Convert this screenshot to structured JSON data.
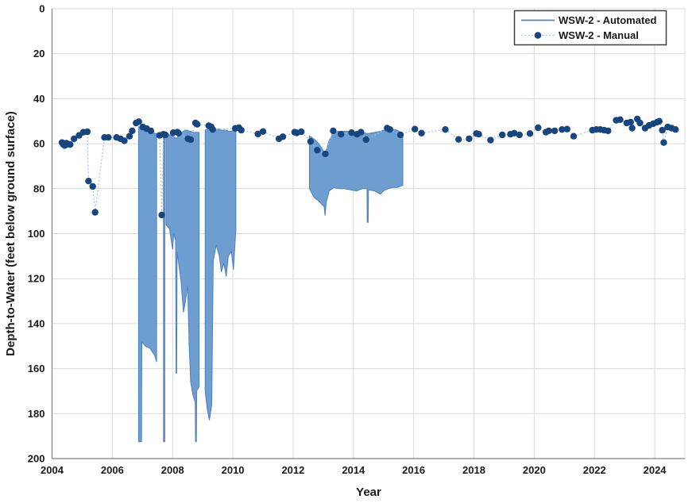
{
  "chart_data": {
    "type": "line",
    "title": "",
    "xlabel": "Year",
    "ylabel": "Depth-to-Water (feet below ground surface)",
    "x_range": [
      2004,
      2025
    ],
    "y_range": [
      0,
      200
    ],
    "y_inverted": true,
    "grid": true,
    "x_ticks": [
      2004,
      2006,
      2008,
      2010,
      2012,
      2014,
      2016,
      2018,
      2020,
      2022,
      2024
    ],
    "y_ticks": [
      0,
      20,
      40,
      60,
      80,
      100,
      120,
      140,
      160,
      180,
      200
    ],
    "legend_position": "top-right",
    "colors": {
      "area_fill": "#6E9ECF",
      "area_stroke": "#4E81BD",
      "marker": "#17457F",
      "dotted_line": "#A6C1DC",
      "gridline": "#D9D9D9",
      "axis_line": "#7F7F7F",
      "text": "#1A1A1A",
      "legend_border": "#404040"
    },
    "legend": [
      {
        "label": "WSW-2 - Automated",
        "swatch": "solid-line"
      },
      {
        "label": "WSW-2 -  Manual",
        "swatch": "dotted-line-marker"
      }
    ],
    "series": [
      {
        "name": "WSW-2 - Automated",
        "style": "area-envelope",
        "units": "feet below ground surface",
        "segments": [
          {
            "points": [
              [
                2006.87,
                52.5,
                192.5
              ],
              [
                2006.97,
                53,
                192.5
              ],
              [
                2006.98,
                53.5,
                148
              ],
              [
                2007.1,
                54,
                150
              ],
              [
                2007.25,
                55,
                151
              ],
              [
                2007.4,
                55.5,
                154
              ],
              [
                2007.47,
                55.5,
                157
              ]
            ]
          },
          {
            "points": [
              [
                2007.7,
                56,
                192.5
              ],
              [
                2007.74,
                56,
                192.5
              ]
            ]
          },
          {
            "points": [
              [
                2007.78,
                56.5,
                96
              ],
              [
                2007.9,
                56,
                98
              ],
              [
                2008.0,
                56.5,
                107
              ],
              [
                2008.04,
                57,
                100
              ],
              [
                2008.1,
                57.5,
                103
              ],
              [
                2008.115,
                57.5,
                162
              ],
              [
                2008.135,
                57.5,
                162
              ],
              [
                2008.15,
                57.5,
                108
              ],
              [
                2008.2,
                56.5,
                113
              ],
              [
                2008.28,
                55.5,
                121
              ],
              [
                2008.36,
                54.5,
                135
              ],
              [
                2008.42,
                54,
                131
              ],
              [
                2008.5,
                54,
                123
              ],
              [
                2008.55,
                54.5,
                150
              ],
              [
                2008.6,
                54.5,
                166
              ],
              [
                2008.68,
                55,
                172
              ],
              [
                2008.75,
                55,
                175
              ],
              [
                2008.76,
                55,
                192.5
              ],
              [
                2008.79,
                55,
                192.5
              ],
              [
                2008.8,
                55,
                170
              ],
              [
                2008.88,
                55,
                168
              ]
            ]
          },
          {
            "points": [
              [
                2009.08,
                54,
                170
              ],
              [
                2009.15,
                53.5,
                178
              ],
              [
                2009.22,
                53.5,
                183
              ],
              [
                2009.3,
                53.5,
                176
              ],
              [
                2009.35,
                53.5,
                112
              ],
              [
                2009.45,
                53.5,
                105
              ],
              [
                2009.55,
                53.5,
                110
              ],
              [
                2009.62,
                54,
                117
              ],
              [
                2009.7,
                54,
                113
              ],
              [
                2009.78,
                54,
                119
              ],
              [
                2009.85,
                54.5,
                110
              ],
              [
                2009.95,
                54.5,
                108
              ],
              [
                2010.02,
                54,
                116
              ],
              [
                2010.1,
                53.5,
                98
              ]
            ]
          },
          {
            "points": [
              [
                2012.54,
                56.5,
                80
              ],
              [
                2012.7,
                58,
                84
              ],
              [
                2012.85,
                60,
                85.5
              ],
              [
                2012.95,
                62,
                87
              ],
              [
                2013.03,
                64,
                88
              ],
              [
                2013.06,
                64.5,
                92
              ],
              [
                2013.1,
                63,
                86
              ],
              [
                2013.2,
                58.5,
                81
              ],
              [
                2013.35,
                55,
                79.5
              ],
              [
                2013.5,
                54.5,
                80
              ],
              [
                2013.7,
                54.5,
                80
              ],
              [
                2013.9,
                54.5,
                80.5
              ],
              [
                2014.1,
                55,
                81
              ],
              [
                2014.3,
                55,
                80
              ],
              [
                2014.45,
                55.5,
                80
              ],
              [
                2014.46,
                55.5,
                95
              ],
              [
                2014.49,
                55.5,
                95
              ],
              [
                2014.5,
                55.5,
                80.5
              ],
              [
                2014.7,
                55,
                81
              ],
              [
                2014.9,
                54.5,
                82.5
              ],
              [
                2015.0,
                54,
                81
              ],
              [
                2015.15,
                53.5,
                80
              ],
              [
                2015.3,
                53.5,
                79.5
              ],
              [
                2015.45,
                54,
                79.5
              ],
              [
                2015.64,
                55.5,
                78.5
              ]
            ]
          }
        ]
      },
      {
        "name": "WSW-2 -  Manual",
        "style": "scatter-with-dotted-connector",
        "units": "feet below ground surface",
        "points": [
          [
            2004.33,
            59.5
          ],
          [
            2004.37,
            60.3
          ],
          [
            2004.42,
            60.8
          ],
          [
            2004.47,
            59.8
          ],
          [
            2004.53,
            60.2
          ],
          [
            2004.6,
            60.4
          ],
          [
            2004.73,
            57.8
          ],
          [
            2004.9,
            56.3
          ],
          [
            2005.04,
            54.9
          ],
          [
            2005.17,
            54.7
          ],
          [
            2005.21,
            76.6
          ],
          [
            2005.35,
            79.0
          ],
          [
            2005.43,
            90.5
          ],
          [
            2005.74,
            57.2
          ],
          [
            2005.87,
            57.2
          ],
          [
            2006.14,
            57.2
          ],
          [
            2006.27,
            57.8
          ],
          [
            2006.4,
            58.7
          ],
          [
            2006.57,
            56.7
          ],
          [
            2006.66,
            54.3
          ],
          [
            2006.79,
            50.8
          ],
          [
            2006.88,
            50.2
          ],
          [
            2007.01,
            52.6
          ],
          [
            2007.14,
            53.3
          ],
          [
            2007.28,
            54.3
          ],
          [
            2007.57,
            56.3
          ],
          [
            2007.64,
            91.7
          ],
          [
            2007.7,
            55.8
          ],
          [
            2007.76,
            56.1
          ],
          [
            2008.02,
            55.1
          ],
          [
            2008.16,
            54.9
          ],
          [
            2008.2,
            55.3
          ],
          [
            2008.51,
            57.8
          ],
          [
            2008.6,
            58.2
          ],
          [
            2008.76,
            50.8
          ],
          [
            2008.82,
            51.4
          ],
          [
            2009.2,
            52.0
          ],
          [
            2009.28,
            52.5
          ],
          [
            2009.33,
            53.7
          ],
          [
            2010.08,
            53.2
          ],
          [
            2010.2,
            52.9
          ],
          [
            2010.28,
            54.0
          ],
          [
            2010.83,
            55.7
          ],
          [
            2011.0,
            54.6
          ],
          [
            2011.53,
            57.8
          ],
          [
            2011.66,
            56.9
          ],
          [
            2012.05,
            54.9
          ],
          [
            2012.12,
            55.2
          ],
          [
            2012.27,
            54.7
          ],
          [
            2012.58,
            59.0
          ],
          [
            2012.8,
            62.9
          ],
          [
            2013.07,
            64.5
          ],
          [
            2013.33,
            54.3
          ],
          [
            2013.59,
            55.8
          ],
          [
            2013.94,
            55.1
          ],
          [
            2014.12,
            55.8
          ],
          [
            2014.25,
            54.9
          ],
          [
            2014.42,
            58.2
          ],
          [
            2015.12,
            53.1
          ],
          [
            2015.21,
            53.7
          ],
          [
            2015.56,
            56.1
          ],
          [
            2016.04,
            53.5
          ],
          [
            2016.26,
            55.3
          ],
          [
            2017.05,
            53.7
          ],
          [
            2017.49,
            58.1
          ],
          [
            2017.84,
            57.8
          ],
          [
            2018.08,
            55.5
          ],
          [
            2018.16,
            55.8
          ],
          [
            2018.55,
            58.4
          ],
          [
            2018.94,
            56.1
          ],
          [
            2019.21,
            55.8
          ],
          [
            2019.34,
            55.3
          ],
          [
            2019.51,
            56.1
          ],
          [
            2019.86,
            55.5
          ],
          [
            2020.13,
            52.9
          ],
          [
            2020.39,
            54.9
          ],
          [
            2020.48,
            54.3
          ],
          [
            2020.68,
            54.3
          ],
          [
            2020.92,
            53.7
          ],
          [
            2021.09,
            53.5
          ],
          [
            2021.31,
            56.7
          ],
          [
            2021.93,
            54.0
          ],
          [
            2022.06,
            53.7
          ],
          [
            2022.19,
            53.7
          ],
          [
            2022.32,
            54.0
          ],
          [
            2022.45,
            54.3
          ],
          [
            2022.72,
            49.6
          ],
          [
            2022.85,
            49.3
          ],
          [
            2023.07,
            50.8
          ],
          [
            2023.2,
            50.4
          ],
          [
            2023.25,
            53.1
          ],
          [
            2023.42,
            49.0
          ],
          [
            2023.51,
            50.8
          ],
          [
            2023.68,
            53.1
          ],
          [
            2023.81,
            51.9
          ],
          [
            2023.95,
            51.1
          ],
          [
            2024.08,
            50.4
          ],
          [
            2024.15,
            50.0
          ],
          [
            2024.25,
            54.0
          ],
          [
            2024.3,
            59.5
          ],
          [
            2024.43,
            52.6
          ],
          [
            2024.56,
            53.1
          ],
          [
            2024.69,
            53.7
          ]
        ]
      }
    ]
  }
}
